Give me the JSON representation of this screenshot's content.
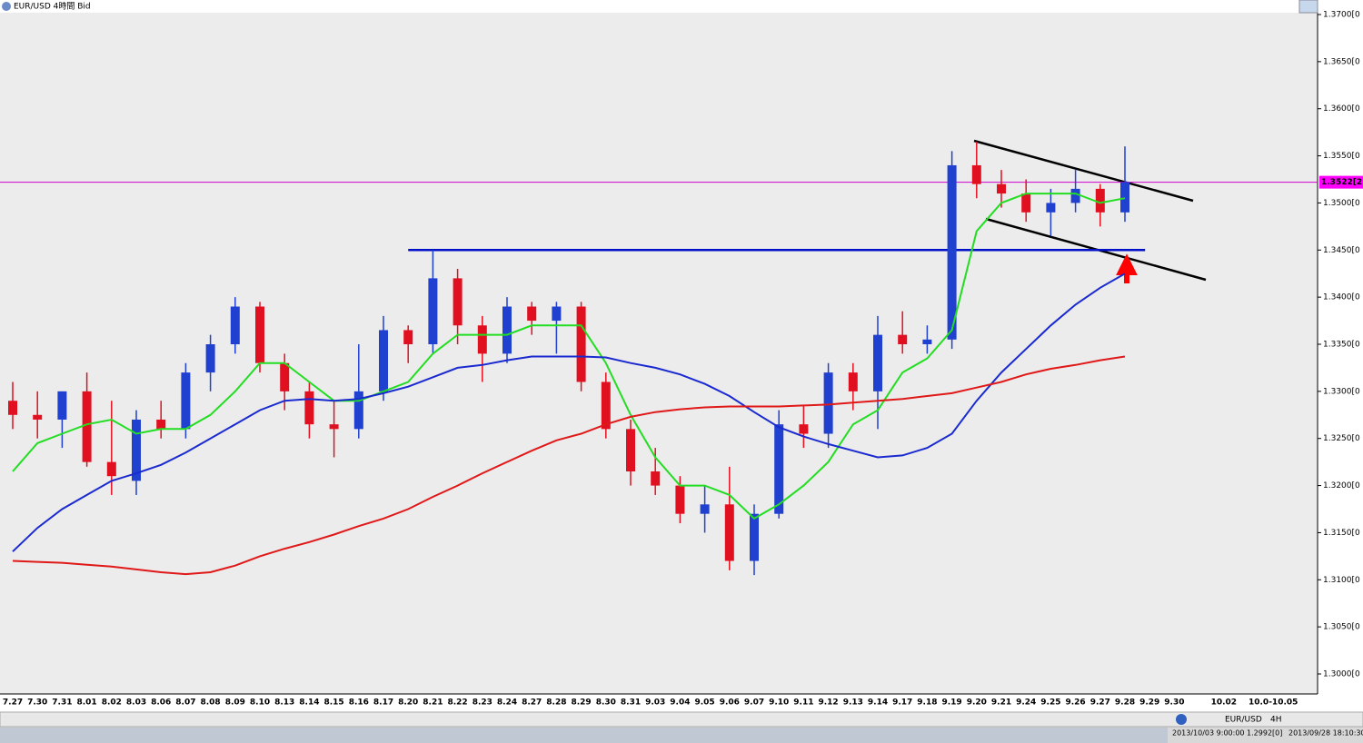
{
  "chart_data": {
    "type": "candlestick",
    "title": "EUR/USD 4時間 Bid",
    "categories": [
      "7.27",
      "7.30",
      "7.31",
      "8.01",
      "8.02",
      "8.03",
      "8.06",
      "8.07",
      "8.08",
      "8.09",
      "8.10",
      "8.13",
      "8.14",
      "8.15",
      "8.16",
      "8.17",
      "8.20",
      "8.21",
      "8.22",
      "8.23",
      "8.24",
      "8.27",
      "8.28",
      "8.29",
      "8.30",
      "8.31",
      "9.03",
      "9.04",
      "9.05",
      "9.06",
      "9.07",
      "9.10",
      "9.11",
      "9.12",
      "9.13",
      "9.14",
      "9.17",
      "9.18",
      "9.19",
      "9.20",
      "9.21",
      "9.24",
      "9.25",
      "9.26",
      "9.27",
      "9.28",
      "9.29",
      "9.30",
      null,
      "10.02",
      null,
      "10.0-10.05"
    ],
    "open": [
      1.329,
      1.3275,
      1.327,
      1.33,
      1.3225,
      1.3205,
      1.327,
      1.326,
      1.332,
      1.335,
      1.339,
      1.333,
      1.33,
      1.3265,
      1.326,
      1.33,
      1.3365,
      1.335,
      1.342,
      1.337,
      1.334,
      1.339,
      1.3375,
      1.339,
      1.331,
      1.326,
      1.3215,
      1.32,
      1.317,
      1.318,
      1.312,
      1.317,
      1.3265,
      1.3255,
      1.332,
      1.33,
      1.336,
      1.335,
      1.3355,
      1.354,
      1.352,
      1.351,
      1.349,
      1.35,
      1.3515,
      1.349,
      null,
      null,
      null,
      null,
      null,
      null
    ],
    "high": [
      1.331,
      1.33,
      1.33,
      1.332,
      1.329,
      1.328,
      1.329,
      1.333,
      1.336,
      1.34,
      1.3395,
      1.334,
      1.331,
      1.329,
      1.335,
      1.338,
      1.337,
      1.345,
      1.343,
      1.338,
      1.34,
      1.3395,
      1.3395,
      1.3395,
      1.332,
      1.327,
      1.324,
      1.321,
      1.32,
      1.322,
      1.318,
      1.328,
      1.3285,
      1.333,
      1.333,
      1.338,
      1.3385,
      1.337,
      1.3555,
      1.3565,
      1.3535,
      1.3525,
      1.3515,
      1.3535,
      1.352,
      1.356,
      null,
      null,
      null,
      null,
      null,
      null
    ],
    "low": [
      1.326,
      1.325,
      1.324,
      1.322,
      1.319,
      1.319,
      1.325,
      1.325,
      1.33,
      1.334,
      1.332,
      1.328,
      1.325,
      1.323,
      1.325,
      1.329,
      1.333,
      1.334,
      1.335,
      1.331,
      1.333,
      1.336,
      1.334,
      1.33,
      1.325,
      1.32,
      1.319,
      1.316,
      1.315,
      1.311,
      1.3105,
      1.3165,
      1.324,
      1.324,
      1.328,
      1.326,
      1.334,
      1.334,
      1.3345,
      1.3505,
      1.3495,
      1.348,
      1.3465,
      1.349,
      1.3475,
      1.348,
      null,
      null,
      null,
      null,
      null,
      null
    ],
    "close": [
      1.3275,
      1.327,
      1.33,
      1.3225,
      1.321,
      1.327,
      1.326,
      1.332,
      1.335,
      1.339,
      1.333,
      1.33,
      1.3265,
      1.326,
      1.33,
      1.3365,
      1.335,
      1.342,
      1.337,
      1.334,
      1.339,
      1.3375,
      1.339,
      1.331,
      1.326,
      1.3215,
      1.32,
      1.317,
      1.318,
      1.312,
      1.317,
      1.3265,
      1.3255,
      1.332,
      1.33,
      1.336,
      1.335,
      1.3355,
      1.354,
      1.352,
      1.351,
      1.349,
      1.35,
      1.3515,
      1.349,
      1.3522,
      null,
      null,
      null,
      null,
      null,
      null
    ],
    "up_color": "#2040d0",
    "down_color": "#e01020",
    "series": [
      {
        "color": "#22dd22",
        "values": [
          1.3215,
          1.3245,
          1.3255,
          1.3265,
          1.327,
          1.3255,
          1.326,
          1.326,
          1.3275,
          1.33,
          1.333,
          1.333,
          1.331,
          1.329,
          1.329,
          1.33,
          1.331,
          1.334,
          1.336,
          1.336,
          1.336,
          1.337,
          1.337,
          1.337,
          1.333,
          1.3275,
          1.323,
          1.32,
          1.32,
          1.319,
          1.3165,
          1.318,
          1.32,
          1.3225,
          1.3265,
          1.328,
          1.332,
          1.3335,
          1.3365,
          1.347,
          1.35,
          1.351,
          1.351,
          1.351,
          1.35,
          1.3505,
          null,
          null,
          null,
          null,
          null,
          null
        ]
      },
      {
        "color": "#1a2ad0",
        "values": [
          1.313,
          1.3155,
          1.3175,
          1.319,
          1.3205,
          1.3213,
          1.3222,
          1.3235,
          1.325,
          1.3265,
          1.328,
          1.329,
          1.3292,
          1.329,
          1.3292,
          1.3298,
          1.3305,
          1.3315,
          1.3325,
          1.3328,
          1.3333,
          1.3337,
          1.3337,
          1.3337,
          1.3336,
          1.333,
          1.3325,
          1.3318,
          1.3308,
          1.3295,
          1.3278,
          1.3262,
          1.3252,
          1.3244,
          1.3237,
          1.323,
          1.3232,
          1.324,
          1.3255,
          1.329,
          1.332,
          1.3345,
          1.337,
          1.3392,
          1.341,
          1.3425,
          null,
          null,
          null,
          null,
          null,
          null
        ]
      },
      {
        "color": "#e01818",
        "values": [
          1.312,
          1.3119,
          1.3118,
          1.3116,
          1.3114,
          1.3111,
          1.3108,
          1.3106,
          1.3108,
          1.3115,
          1.3125,
          1.3133,
          1.314,
          1.3148,
          1.3157,
          1.3165,
          1.3175,
          1.3188,
          1.32,
          1.3213,
          1.3225,
          1.3237,
          1.3248,
          1.3255,
          1.3265,
          1.3273,
          1.3278,
          1.3281,
          1.3283,
          1.3284,
          1.3284,
          1.3284,
          1.3285,
          1.3286,
          1.3288,
          1.329,
          1.3292,
          1.3295,
          1.3298,
          1.3304,
          1.331,
          1.3318,
          1.3324,
          1.3328,
          1.3333,
          1.3337,
          null,
          null,
          null,
          null,
          null,
          null
        ]
      }
    ],
    "level": {
      "value": 1.345,
      "color": "#0010c8"
    },
    "current_price": {
      "value": 1.3522,
      "label": "1.3522[2",
      "color": "#cc00cc"
    },
    "ylim": [
      1.3,
      1.37
    ],
    "yticks": [
      {
        "value": 1.3,
        "label": "1.3000[0"
      },
      {
        "value": 1.305,
        "label": "1.3050[0"
      },
      {
        "value": 1.31,
        "label": "1.3100[0"
      },
      {
        "value": 1.315,
        "label": "1.3150[0"
      },
      {
        "value": 1.32,
        "label": "1.3200[0"
      },
      {
        "value": 1.325,
        "label": "1.3250[0"
      },
      {
        "value": 1.33,
        "label": "1.3300[0"
      },
      {
        "value": 1.335,
        "label": "1.3350[0"
      },
      {
        "value": 1.34,
        "label": "1.3400[0"
      },
      {
        "value": 1.345,
        "label": "1.3450[0"
      },
      {
        "value": 1.35,
        "label": "1.3500[0"
      },
      {
        "value": 1.355,
        "label": "1.3550[0"
      },
      {
        "value": 1.36,
        "label": "1.3600[0"
      },
      {
        "value": 1.365,
        "label": "1.3650[0"
      },
      {
        "value": 1.37,
        "label": "1.3700[0"
      }
    ],
    "status_bar": {
      "symbol": "EUR/USD",
      "timeframe": "4H",
      "cursor": "2013/10/03 9:00:00  1.2992[0]",
      "time": "2013/09/28 18:10:30"
    }
  }
}
